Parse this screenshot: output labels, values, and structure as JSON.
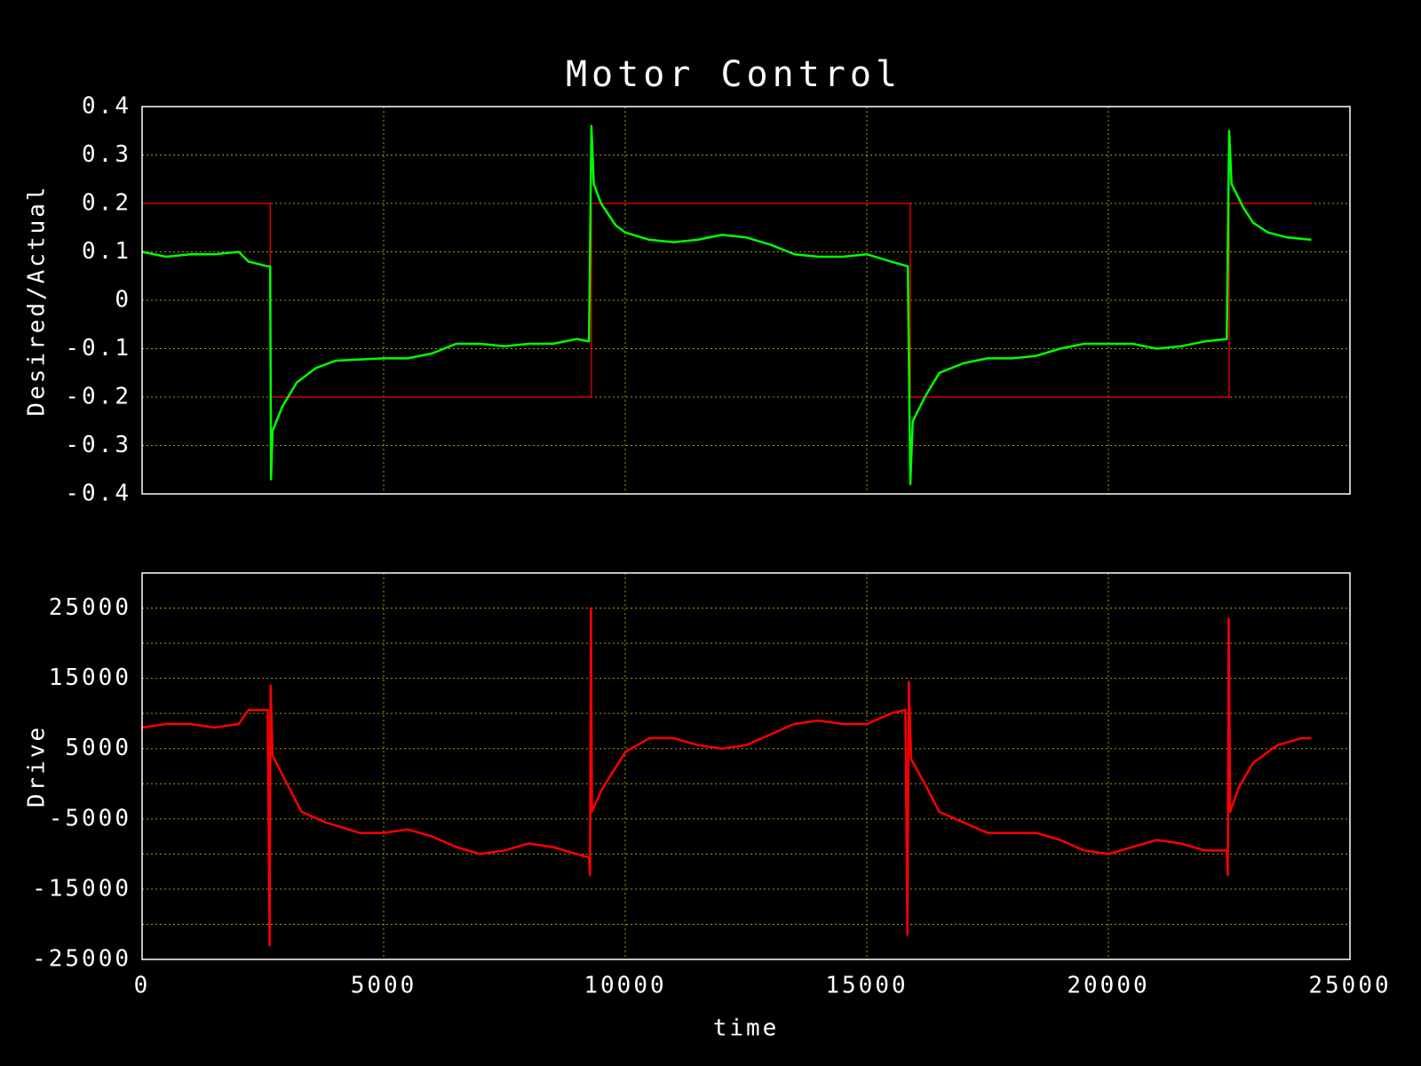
{
  "chart_data": [
    {
      "type": "line",
      "title": "Motor Control",
      "ylabel": "Desired/Actual",
      "xlim": [
        0,
        25000
      ],
      "xticks": [
        0,
        5000,
        10000,
        15000,
        20000,
        25000
      ],
      "ylim": [
        -0.4,
        0.4
      ],
      "yticks": [
        0.4,
        0.3,
        0.2,
        0.1,
        0,
        -0.1,
        -0.2,
        -0.3,
        -0.4
      ],
      "grid": true,
      "series": [
        {
          "color": "#ff0000",
          "x": [
            0,
            2650,
            2650,
            9300,
            9300,
            15900,
            15900,
            22500,
            22500,
            24200
          ],
          "values": [
            0.2,
            0.2,
            -0.2,
            -0.2,
            0.2,
            0.2,
            -0.2,
            -0.2,
            0.2,
            0.2
          ]
        },
        {
          "color": "#00ff00",
          "x": [
            0,
            500,
            1000,
            1500,
            2000,
            2200,
            2600,
            2650,
            2670,
            2700,
            2900,
            3200,
            3600,
            4000,
            5000,
            5500,
            6000,
            6500,
            7000,
            7500,
            8000,
            8500,
            9000,
            9250,
            9300,
            9350,
            9500,
            9800,
            10000,
            10500,
            11000,
            11500,
            12000,
            12500,
            13000,
            13500,
            14000,
            14500,
            15000,
            15500,
            15850,
            15900,
            15950,
            16200,
            16500,
            17000,
            17500,
            18000,
            18500,
            19000,
            19500,
            20000,
            20500,
            21000,
            21500,
            22000,
            22450,
            22500,
            22550,
            22800,
            23000,
            23300,
            23700,
            24200
          ],
          "values": [
            0.1,
            0.09,
            0.095,
            0.095,
            0.1,
            0.08,
            0.07,
            0.07,
            -0.37,
            -0.27,
            -0.22,
            -0.17,
            -0.14,
            -0.125,
            -0.12,
            -0.12,
            -0.11,
            -0.09,
            -0.09,
            -0.095,
            -0.09,
            -0.09,
            -0.08,
            -0.085,
            0.36,
            0.24,
            0.2,
            0.155,
            0.14,
            0.125,
            0.12,
            0.125,
            0.135,
            0.13,
            0.115,
            0.095,
            0.09,
            0.09,
            0.095,
            0.08,
            0.07,
            -0.38,
            -0.25,
            -0.2,
            -0.15,
            -0.13,
            -0.12,
            -0.12,
            -0.115,
            -0.1,
            -0.09,
            -0.09,
            -0.09,
            -0.1,
            -0.095,
            -0.085,
            -0.08,
            0.35,
            0.24,
            0.19,
            0.16,
            0.14,
            0.13,
            0.125
          ]
        }
      ]
    },
    {
      "type": "line",
      "ylabel": "Drive",
      "xlabel": "time",
      "xlim": [
        0,
        25000
      ],
      "xticks": [
        0,
        5000,
        10000,
        15000,
        20000,
        25000
      ],
      "ylim": [
        -25000,
        30000
      ],
      "yticks": [
        25000,
        15000,
        5000,
        -5000,
        -15000,
        -25000
      ],
      "y_minor_ticks": [
        20000,
        10000,
        0,
        -10000,
        -20000
      ],
      "grid": true,
      "series": [
        {
          "color": "#ff0000",
          "x": [
            0,
            500,
            1000,
            1500,
            2000,
            2200,
            2600,
            2640,
            2660,
            2700,
            3000,
            3300,
            3800,
            4500,
            5000,
            5500,
            6000,
            6500,
            7000,
            7500,
            8000,
            8500,
            9000,
            9250,
            9270,
            9290,
            9310,
            9500,
            10000,
            10500,
            11000,
            11500,
            12000,
            12500,
            13000,
            13500,
            14000,
            14500,
            15000,
            15500,
            15800,
            15840,
            15870,
            15920,
            16200,
            16500,
            17000,
            17500,
            18000,
            18500,
            19000,
            19500,
            20000,
            20500,
            21000,
            21500,
            22000,
            22450,
            22470,
            22490,
            22520,
            22700,
            23000,
            23500,
            24000,
            24200
          ],
          "values": [
            8000,
            8500,
            8500,
            8000,
            8500,
            10500,
            10500,
            -23000,
            14000,
            4000,
            0,
            -4000,
            -5500,
            -7000,
            -7000,
            -6500,
            -7500,
            -9000,
            -10000,
            -9500,
            -8500,
            -9000,
            -10000,
            -10500,
            -13000,
            25000,
            -4000,
            -1000,
            4500,
            6500,
            6500,
            5500,
            5000,
            5500,
            7000,
            8500,
            9000,
            8500,
            8500,
            10000,
            10500,
            -21500,
            14500,
            3500,
            0,
            -4000,
            -5500,
            -7000,
            -7000,
            -7000,
            -8000,
            -9500,
            -10000,
            -9000,
            -8000,
            -8500,
            -9500,
            -9500,
            -13000,
            23500,
            -4000,
            -500,
            3000,
            5500,
            6500,
            6500
          ]
        }
      ]
    }
  ]
}
